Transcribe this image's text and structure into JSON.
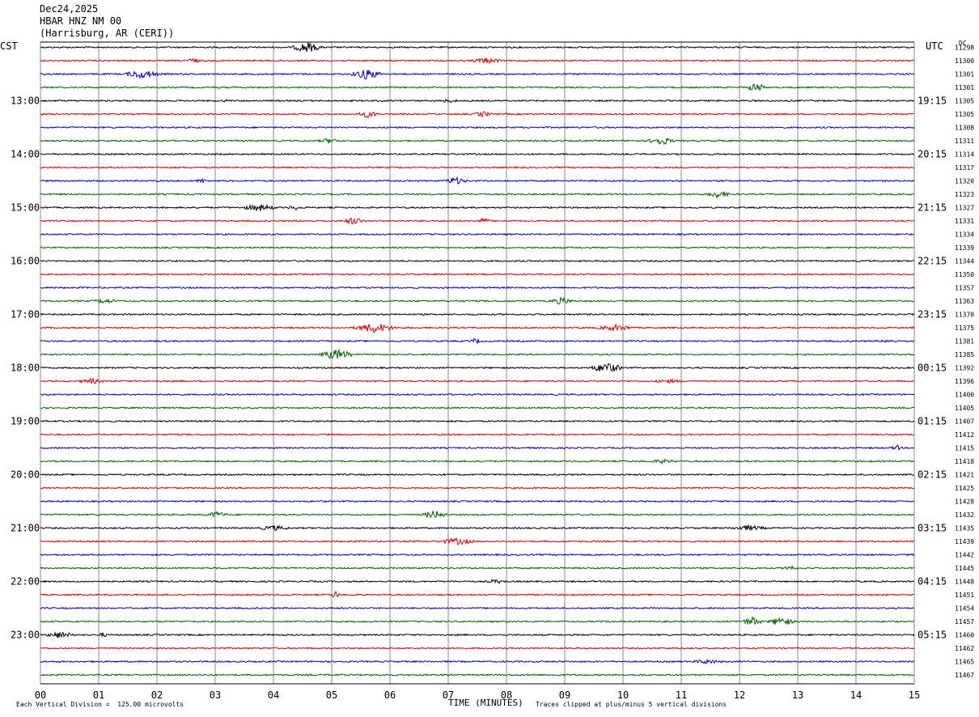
{
  "header": {
    "date": "Dec24,2025",
    "station": "HBAR HNZ NM 00",
    "location": "(Harrisburg, AR (CERI))"
  },
  "left_timezone": "CST",
  "right_timezone": "UTC",
  "dc_label": "DC",
  "chart_data": {
    "type": "line",
    "title": "HBAR HNZ NM 00",
    "xlabel": "TIME (MINUTES)",
    "xlim": [
      0,
      15
    ],
    "x_ticks": [
      "00",
      "01",
      "02",
      "03",
      "04",
      "05",
      "06",
      "07",
      "08",
      "09",
      "10",
      "11",
      "12",
      "13",
      "14",
      "15"
    ],
    "trace_colors": [
      "#000000",
      "#e00000",
      "#0000d0",
      "#006400"
    ],
    "left_hour_labels": [
      "13:00",
      "14:00",
      "15:00",
      "16:00",
      "17:00",
      "18:00",
      "19:00",
      "20:00",
      "21:00",
      "22:00",
      "23:00"
    ],
    "right_hour_labels": [
      "19:15",
      "20:15",
      "21:15",
      "22:15",
      "23:15",
      "00:15",
      "01:15",
      "02:15",
      "03:15",
      "04:15",
      "05:15"
    ],
    "dc_offsets": [
      "11298",
      "11300",
      "11301",
      "11301",
      "11305",
      "11305",
      "11308",
      "11311",
      "11314",
      "11317",
      "11320",
      "11323",
      "11327",
      "11331",
      "11334",
      "11339",
      "11344",
      "11350",
      "11357",
      "11363",
      "11370",
      "11375",
      "11381",
      "11385",
      "11392",
      "11396",
      "11400",
      "11405",
      "11407",
      "11412",
      "11415",
      "11418",
      "11421",
      "11425",
      "11428",
      "11432",
      "11435",
      "11439",
      "11442",
      "11445",
      "11448",
      "11451",
      "11454",
      "11457",
      "11460",
      "11462",
      "11465",
      "11467"
    ],
    "vertical_division": "Each Vertical Division =  125.00 microvolts",
    "clip_note": "Traces clipped at plus/minus 5 vertical divisions"
  }
}
